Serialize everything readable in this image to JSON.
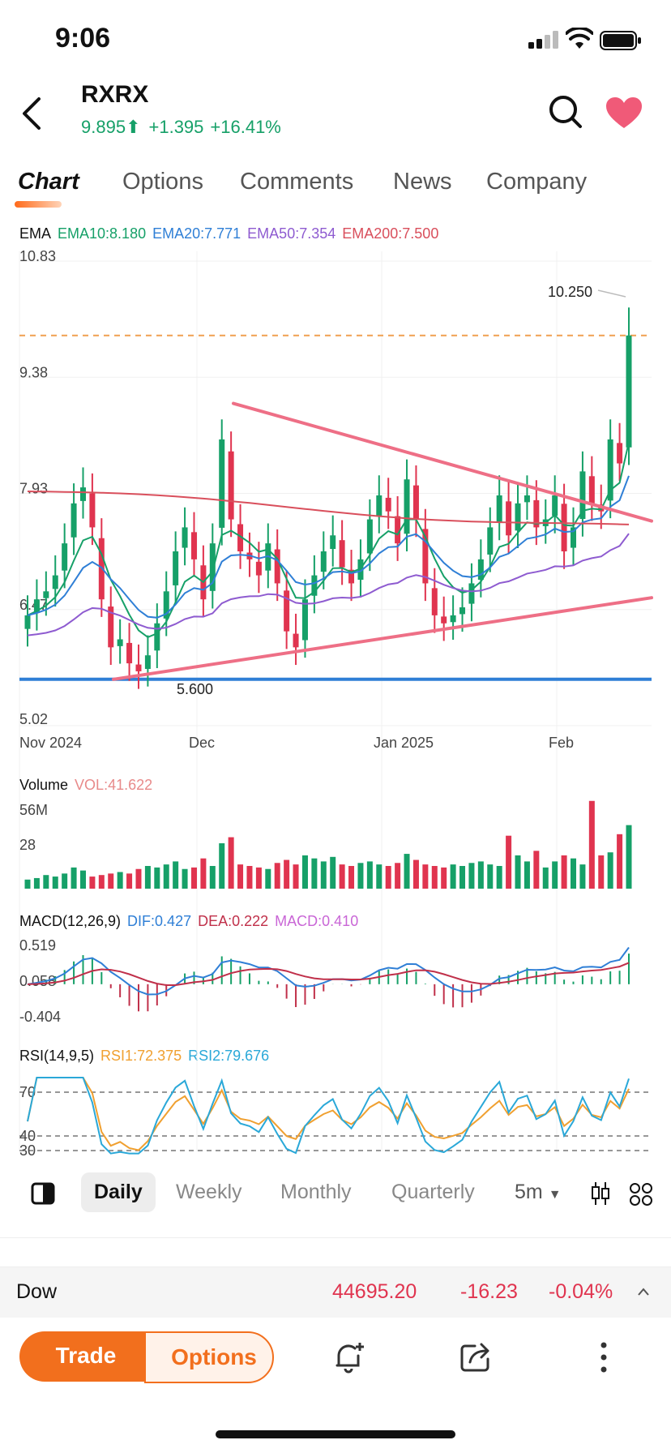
{
  "status_bar": {
    "time": "9:06"
  },
  "header": {
    "ticker": "RXRX",
    "price": "9.895",
    "change": "+1.395",
    "change_pct": "+16.41%",
    "up_color": "#16a068"
  },
  "tabs": [
    "Chart",
    "Options",
    "Comments",
    "News",
    "Company"
  ],
  "indicators": {
    "ema": {
      "label": "EMA",
      "ema10": "EMA10:8.180",
      "ema20": "EMA20:7.771",
      "ema50": "EMA50:7.354",
      "ema200": "EMA200:7.500"
    },
    "volume": {
      "label": "Volume",
      "vol": "VOL:41.622"
    },
    "macd": {
      "label": "MACD(12,26,9)",
      "dif": "DIF:0.427",
      "dea": "DEA:0.222",
      "macd": "MACD:0.410"
    },
    "rsi": {
      "label": "RSI(14,9,5)",
      "rsi1": "RSI1:72.375",
      "rsi2": "RSI2:79.676"
    }
  },
  "chart_data": [
    {
      "type": "candlestick",
      "title": "RXRX Daily",
      "y_ticks": [
        "10.83",
        "9.38",
        "7.93",
        "6.47",
        "5.02"
      ],
      "x_ticks": [
        "Nov 2024",
        "Dec",
        "Jan 2025",
        "Feb"
      ],
      "ylim": [
        5.02,
        10.83
      ],
      "annotations": {
        "high": "10.250",
        "support": "5.600"
      },
      "reference_line": 9.9,
      "support_level": 5.6,
      "closes": [
        6.4,
        6.6,
        6.7,
        6.9,
        7.3,
        7.8,
        8.0,
        7.5,
        6.6,
        6.0,
        6.1,
        5.8,
        5.7,
        5.9,
        6.3,
        6.7,
        7.2,
        7.5,
        7.1,
        6.6,
        7.3,
        8.6,
        7.6,
        7.2,
        7.1,
        6.9,
        7.3,
        6.8,
        6.2,
        6.0,
        6.6,
        6.9,
        7.2,
        7.4,
        7.0,
        6.8,
        7.1,
        7.6,
        7.9,
        7.7,
        7.3,
        8.1,
        7.6,
        6.8,
        6.4,
        6.3,
        6.4,
        6.5,
        6.8,
        7.1,
        7.5,
        7.9,
        7.4,
        7.8,
        7.9,
        7.5,
        7.6,
        7.9,
        7.2,
        7.5,
        8.2,
        7.8,
        7.7,
        8.6,
        8.3,
        9.9
      ],
      "ema_series": [
        {
          "name": "EMA10",
          "color": "#16a068"
        },
        {
          "name": "EMA20",
          "color": "#2f7fd6"
        },
        {
          "name": "EMA50",
          "color": "#8e5bd0"
        },
        {
          "name": "EMA200",
          "color": "#d94f5c"
        }
      ],
      "trendlines": [
        {
          "from": [
            11,
            5.6
          ],
          "to": [
            76,
            6.65
          ]
        },
        {
          "from": [
            26,
            9.0
          ],
          "to": [
            80,
            7.7
          ]
        }
      ]
    },
    {
      "type": "bar",
      "title": "Volume",
      "y_ticks": [
        "56M",
        "28"
      ],
      "ylim": [
        0,
        56
      ],
      "values": [
        6,
        7,
        9,
        8,
        10,
        14,
        12,
        8,
        9,
        10,
        11,
        10,
        13,
        15,
        14,
        16,
        18,
        13,
        14,
        20,
        15,
        30,
        34,
        16,
        15,
        14,
        13,
        17,
        19,
        16,
        22,
        20,
        18,
        21,
        16,
        15,
        17,
        18,
        16,
        15,
        17,
        23,
        19,
        16,
        15,
        14,
        16,
        15,
        17,
        18,
        16,
        15,
        35,
        22,
        18,
        25,
        14,
        18,
        22,
        20,
        16,
        58,
        22,
        24,
        36,
        42
      ]
    },
    {
      "type": "line",
      "title": "MACD",
      "y_ticks": [
        "0.519",
        "0.058",
        "-0.404"
      ],
      "ylim": [
        -0.404,
        0.519
      ]
    },
    {
      "type": "line",
      "title": "RSI",
      "y_ticks": [
        "70",
        "40",
        "30"
      ],
      "ylim": [
        25,
        85
      ]
    }
  ],
  "periods": [
    "Daily",
    "Weekly",
    "Monthly",
    "Quarterly",
    "5m"
  ],
  "dow": {
    "name": "Dow",
    "value": "44695.20",
    "change": "-16.23",
    "pct": "-0.04%"
  },
  "actions": {
    "trade": "Trade",
    "options": "Options"
  }
}
